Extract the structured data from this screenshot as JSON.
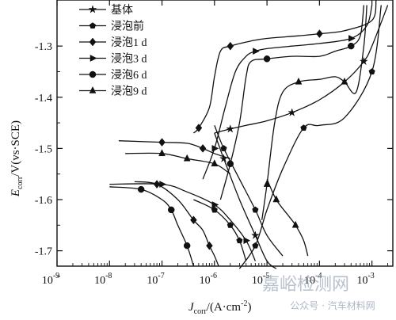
{
  "chart_data": {
    "type": "line",
    "xscale": "log",
    "xlim": [
      1e-09,
      0.0025
    ],
    "ylim": [
      -1.73,
      -1.21
    ],
    "xticks": [
      {
        "value": 1e-09,
        "base": "10",
        "exp": "-9"
      },
      {
        "value": 1e-08,
        "base": "10",
        "exp": "-8"
      },
      {
        "value": 1e-07,
        "base": "10",
        "exp": "-7"
      },
      {
        "value": 1e-06,
        "base": "10",
        "exp": "-6"
      },
      {
        "value": 1e-05,
        "base": "10",
        "exp": "-5"
      },
      {
        "value": 0.0001,
        "base": "10",
        "exp": "-4"
      },
      {
        "value": 0.001,
        "base": "10",
        "exp": "-3"
      }
    ],
    "yticks": [
      {
        "value": -1.3,
        "label": "-1.3"
      },
      {
        "value": -1.4,
        "label": "-1.4"
      },
      {
        "value": -1.5,
        "label": "-1.5"
      },
      {
        "value": -1.6,
        "label": "-1.6"
      },
      {
        "value": -1.7,
        "label": "-1.7"
      }
    ],
    "xlabel": {
      "var": "J",
      "sub": "corr",
      "rest": "/(A·cm",
      "sup": "-2",
      "close": ")"
    },
    "ylabel": {
      "var": "E",
      "sub": "corr",
      "rest": "/V(vs·SCE)"
    },
    "grid": false,
    "legend": "top-left",
    "series": [
      {
        "name": "基体",
        "marker": "star",
        "x": [
          1e-06,
          2e-06,
          4e-06,
          1e-05,
          3e-05,
          0.0001,
          0.0003,
          0.0007,
          0.001,
          0.002
        ],
        "y": [
          -1.47,
          -1.462,
          -1.455,
          -1.446,
          -1.43,
          -1.405,
          -1.37,
          -1.33,
          -1.3,
          -1.22
        ]
      },
      {
        "name": "浸泡前",
        "marker": "pentagon",
        "x": [
          3e-06,
          6e-06,
          1e-05,
          2e-05,
          5e-05,
          0.0001,
          0.0003,
          0.001,
          0.0015
        ],
        "y": [
          -1.735,
          -1.69,
          -1.62,
          -1.54,
          -1.46,
          -1.455,
          -1.44,
          -1.35,
          -1.22
        ]
      },
      {
        "name": "浸泡1 d",
        "marker": "diamond",
        "x": [
          4e-07,
          5e-07,
          8e-07,
          1e-06,
          1.3e-06,
          2e-06,
          5e-06,
          1e-05,
          4e-05,
          0.0001,
          0.0003,
          0.001,
          0.0012
        ],
        "y": [
          -1.47,
          -1.46,
          -1.42,
          -1.36,
          -1.31,
          -1.3,
          -1.29,
          -1.285,
          -1.28,
          -1.276,
          -1.27,
          -1.25,
          -1.21
        ]
      },
      {
        "name": "浸泡3 d",
        "marker": "triangle-right",
        "x": [
          6e-07,
          1e-06,
          1.6e-06,
          2.5e-06,
          4e-06,
          6e-06,
          1e-05,
          3e-05,
          0.0001,
          0.0004,
          0.0008,
          0.001
        ],
        "y": [
          -1.56,
          -1.5,
          -1.42,
          -1.35,
          -1.32,
          -1.31,
          -1.305,
          -1.3,
          -1.295,
          -1.285,
          -1.26,
          -1.22
        ]
      },
      {
        "name": "浸泡6 d",
        "marker": "circle",
        "x": [
          1.3e-06,
          2e-06,
          3e-06,
          4e-06,
          5e-06,
          1e-05,
          3e-05,
          0.0001,
          0.0002,
          0.0004,
          0.0006,
          0.0007
        ],
        "y": [
          -1.6,
          -1.53,
          -1.45,
          -1.36,
          -1.33,
          -1.325,
          -1.32,
          -1.32,
          -1.31,
          -1.3,
          -1.28,
          -1.22
        ]
      },
      {
        "name": "浸泡9 d",
        "marker": "triangle-up",
        "x": [
          8e-06,
          1e-05,
          1.4e-05,
          2e-05,
          4e-05,
          0.0001,
          0.0002,
          0.0003,
          0.0005,
          0.0007,
          0.0008
        ],
        "y": [
          -1.64,
          -1.57,
          -1.45,
          -1.39,
          -1.37,
          -1.365,
          -1.36,
          -1.37,
          -1.39,
          -1.3,
          -1.22
        ]
      }
    ],
    "cathodic": [
      {
        "series": "基体",
        "x": [
          1e-06,
          1.5e-06,
          3e-06,
          6e-06,
          1e-05,
          1.5e-05
        ],
        "y": [
          -1.47,
          -1.52,
          -1.6,
          -1.67,
          -1.72,
          -1.735
        ]
      },
      {
        "series": "浸泡前",
        "x": [
          1e-06,
          1.5e-06,
          3e-06,
          6e-06,
          1e-05,
          2e-05
        ],
        "y": [
          -1.455,
          -1.5,
          -1.56,
          -1.62,
          -1.67,
          -1.71
        ]
      },
      {
        "series": "浸泡1 d",
        "x": [
          3e-08,
          8e-08,
          2e-07,
          4e-07,
          6e-07,
          8e-07,
          1e-06,
          1.2e-06
        ],
        "y": [
          -1.565,
          -1.57,
          -1.6,
          -1.64,
          -1.66,
          -1.69,
          -1.71,
          -1.73
        ]
      },
      {
        "series": "浸泡3 d",
        "x": [
          1e-08,
          1e-07,
          3e-07,
          1e-06,
          2e-06,
          4e-06,
          6e-06
        ],
        "y": [
          -1.57,
          -1.57,
          -1.585,
          -1.61,
          -1.64,
          -1.68,
          -1.72
        ]
      },
      {
        "series": "浸泡6 d",
        "x": [
          1e-08,
          4e-08,
          1e-07,
          1.5e-07,
          2e-07,
          3e-07,
          4e-07
        ],
        "y": [
          -1.575,
          -1.58,
          -1.6,
          -1.62,
          -1.65,
          -1.69,
          -1.73
        ]
      },
      {
        "series": "浸泡9 d",
        "x": [
          1e-05,
          1.5e-05,
          2.5e-05,
          3.5e-05,
          5e-05,
          6e-05
        ],
        "y": [
          -1.56,
          -1.6,
          -1.63,
          -1.65,
          -1.68,
          -1.71
        ]
      }
    ],
    "extra": [
      {
        "series": "浸泡前",
        "x": [
          4e-07,
          1e-06,
          2e-06,
          3e-06,
          4e-06
        ],
        "y": [
          -1.6,
          -1.62,
          -1.65,
          -1.68,
          -1.72
        ]
      },
      {
        "series": "浸泡1 d",
        "x": [
          1.5e-08,
          1e-07,
          3e-07,
          6e-07,
          1e-06,
          2e-06
        ],
        "y": [
          -1.485,
          -1.488,
          -1.49,
          -1.5,
          -1.51,
          -1.52
        ]
      },
      {
        "series": "浸泡9 d",
        "x": [
          2e-08,
          1e-07,
          3e-07,
          1e-06,
          2e-06
        ],
        "y": [
          -1.51,
          -1.51,
          -1.52,
          -1.53,
          -1.55
        ]
      }
    ]
  },
  "watermark": {
    "site": "嘉峪检测网",
    "account": "公众号 · 汽车材料网"
  }
}
